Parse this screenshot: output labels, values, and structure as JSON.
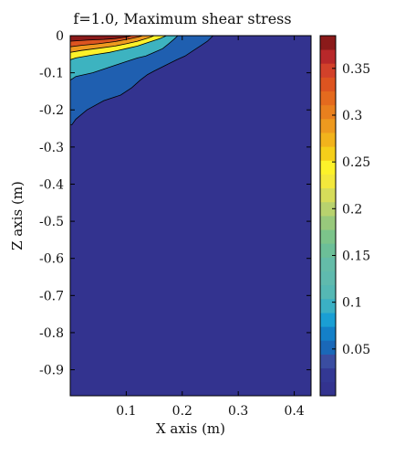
{
  "chart_data": {
    "type": "contour",
    "title": "f=1.0, Maximum shear stress",
    "xlabel": "X axis (m)",
    "ylabel": "Z axis (m)",
    "xlim": [
      0,
      0.43
    ],
    "ylim": [
      -0.97,
      0
    ],
    "xticks": [
      "0.1",
      "0.2",
      "0.3",
      "0.4"
    ],
    "xtick_values": [
      0.1,
      0.2,
      0.3,
      0.4
    ],
    "yticks": [
      "0",
      "-0.1",
      "-0.2",
      "-0.3",
      "-0.4",
      "-0.5",
      "-0.6",
      "-0.7",
      "-0.8",
      "-0.9"
    ],
    "ytick_values": [
      0,
      -0.1,
      -0.2,
      -0.3,
      -0.4,
      -0.5,
      -0.6,
      -0.7,
      -0.8,
      -0.9
    ],
    "colorbar": {
      "range": [
        0,
        0.385
      ],
      "ticks": [
        "0.05",
        "0.1",
        "0.15",
        "0.2",
        "0.25",
        "0.3",
        "0.35"
      ],
      "tick_values": [
        0.05,
        0.1,
        0.15,
        0.2,
        0.25,
        0.3,
        0.35
      ],
      "colors": [
        "#33338f",
        "#333894",
        "#3a4da1",
        "#1a68b8",
        "#1480c8",
        "#1a9fd4",
        "#3bb0c4",
        "#55b8b4",
        "#5fbaae",
        "#64bca8",
        "#6cbf98",
        "#7cc48a",
        "#98c97c",
        "#b8d26e",
        "#d6dc5a",
        "#f3e83c",
        "#fcf22a",
        "#f5cf1a",
        "#f2b31c",
        "#ee9a1f",
        "#e9801e",
        "#e46a1e",
        "#dd5420",
        "#d2412a",
        "#b8282a",
        "#8b1a1a"
      ]
    },
    "contours": [
      {
        "level": 0.03,
        "color": "#1f5fb0",
        "points": [
          [
            0,
            -0.24
          ],
          [
            0.003,
            -0.24
          ],
          [
            0.01,
            -0.225
          ],
          [
            0.03,
            -0.2
          ],
          [
            0.06,
            -0.175
          ],
          [
            0.09,
            -0.16
          ],
          [
            0.11,
            -0.14
          ],
          [
            0.125,
            -0.12
          ],
          [
            0.138,
            -0.105
          ],
          [
            0.15,
            -0.095
          ],
          [
            0.17,
            -0.08
          ],
          [
            0.19,
            -0.065
          ],
          [
            0.205,
            -0.055
          ],
          [
            0.22,
            -0.04
          ],
          [
            0.232,
            -0.028
          ],
          [
            0.245,
            -0.015
          ],
          [
            0.255,
            0
          ]
        ]
      },
      {
        "level": 0.15,
        "color": "#3db3c0",
        "points": [
          [
            0,
            -0.12
          ],
          [
            0.01,
            -0.11
          ],
          [
            0.04,
            -0.1
          ],
          [
            0.07,
            -0.085
          ],
          [
            0.1,
            -0.07
          ],
          [
            0.12,
            -0.06
          ],
          [
            0.135,
            -0.055
          ],
          [
            0.15,
            -0.045
          ],
          [
            0.165,
            -0.035
          ],
          [
            0.175,
            -0.023
          ],
          [
            0.185,
            -0.01
          ],
          [
            0.192,
            0
          ]
        ]
      },
      {
        "level": 0.25,
        "color": "#fcf22a",
        "points": [
          [
            0,
            -0.065
          ],
          [
            0.01,
            -0.06
          ],
          [
            0.04,
            -0.052
          ],
          [
            0.07,
            -0.045
          ],
          [
            0.1,
            -0.035
          ],
          [
            0.12,
            -0.028
          ],
          [
            0.14,
            -0.018
          ],
          [
            0.16,
            -0.008
          ],
          [
            0.172,
            0
          ]
        ]
      },
      {
        "level": 0.28,
        "color": "#ee9a1f",
        "points": [
          [
            0,
            -0.045
          ],
          [
            0.02,
            -0.04
          ],
          [
            0.05,
            -0.034
          ],
          [
            0.08,
            -0.028
          ],
          [
            0.1,
            -0.022
          ],
          [
            0.12,
            -0.015
          ],
          [
            0.14,
            -0.006
          ],
          [
            0.15,
            0
          ]
        ]
      },
      {
        "level": 0.33,
        "color": "#dd5420",
        "points": [
          [
            0,
            -0.03
          ],
          [
            0.02,
            -0.026
          ],
          [
            0.05,
            -0.022
          ],
          [
            0.08,
            -0.016
          ],
          [
            0.1,
            -0.01
          ],
          [
            0.12,
            -0.004
          ],
          [
            0.13,
            0
          ]
        ]
      },
      {
        "level": 0.37,
        "color": "#8b1a1a",
        "points": [
          [
            0,
            -0.015
          ],
          [
            0.03,
            -0.012
          ],
          [
            0.06,
            -0.01
          ],
          [
            0.08,
            -0.008
          ],
          [
            0.1,
            -0.004
          ],
          [
            0.11,
            0
          ]
        ]
      }
    ]
  }
}
